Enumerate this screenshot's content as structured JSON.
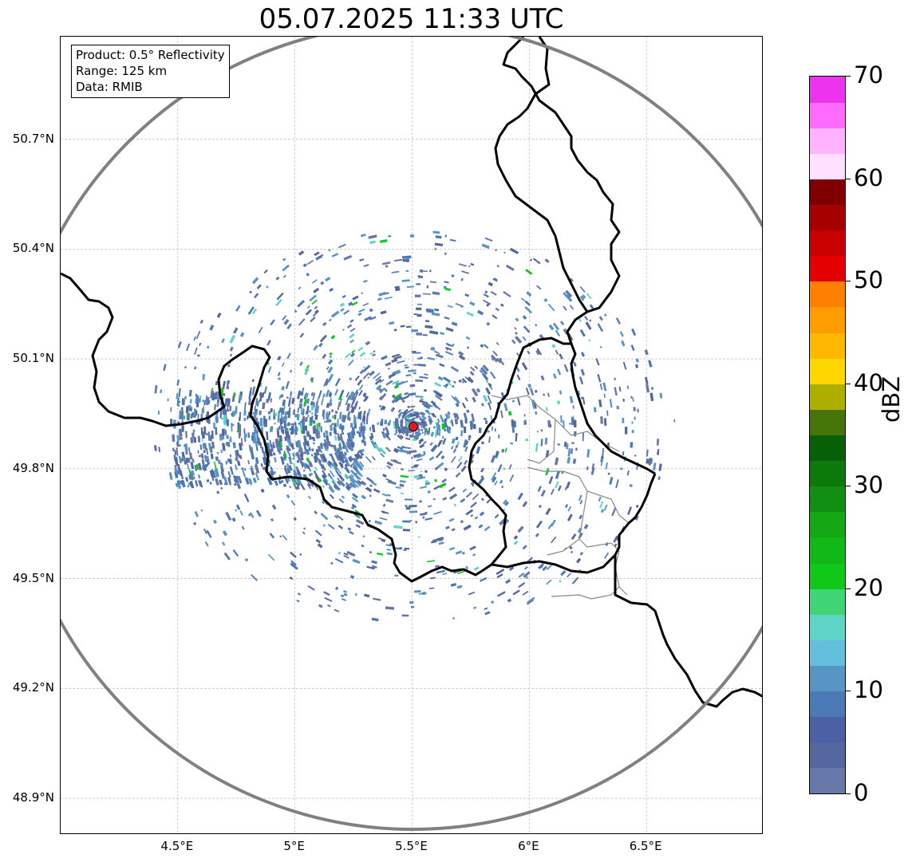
{
  "title": "05.07.2025 11:33 UTC",
  "info": {
    "product": "Product: 0.5° Reflectivity",
    "range": "Range: 125 km",
    "data": "Data: RMIB"
  },
  "map": {
    "lon_range": [
      4.0,
      7.0
    ],
    "lat_range": [
      48.8,
      50.98
    ],
    "radar_site": {
      "lon": 5.505,
      "lat": 49.915
    },
    "range_ring_km": 125,
    "lat_ticks": [
      "50.7°N",
      "50.4°N",
      "50.1°N",
      "49.8°N",
      "49.5°N",
      "49.2°N",
      "48.9°N"
    ],
    "lat_values": [
      50.7,
      50.4,
      50.1,
      49.8,
      49.5,
      49.2,
      48.9
    ],
    "lon_ticks": [
      "4.5°E",
      "5°E",
      "5.5°E",
      "6°E",
      "6.5°E"
    ],
    "lon_values": [
      4.5,
      5.0,
      5.5,
      6.0,
      6.5
    ],
    "colors": {
      "border": "#000000",
      "ring": "#808080",
      "grid": "#b0b0b0",
      "admin": "#888888",
      "radar": "#e31a1c"
    }
  },
  "colorbar": {
    "label": "dBZ",
    "ticks": [
      "70",
      "60",
      "50",
      "40",
      "30",
      "20",
      "10",
      "0"
    ],
    "min": 0,
    "max": 70,
    "colors": [
      "#6677aa",
      "#54679e",
      "#4c61a5",
      "#4a79b5",
      "#5795c5",
      "#64bfde",
      "#5ed5c6",
      "#3fd474",
      "#10c81a",
      "#12b817",
      "#13a814",
      "#128e12",
      "#0b7a0b",
      "#075f07",
      "#457509",
      "#aeae00",
      "#ffd700",
      "#ffb700",
      "#ff9c00",
      "#ff7f00",
      "#e40000",
      "#c80000",
      "#a60000",
      "#800000",
      "#ffe0ff",
      "#ffb3ff",
      "#ff6bff",
      "#ee33ee"
    ]
  }
}
